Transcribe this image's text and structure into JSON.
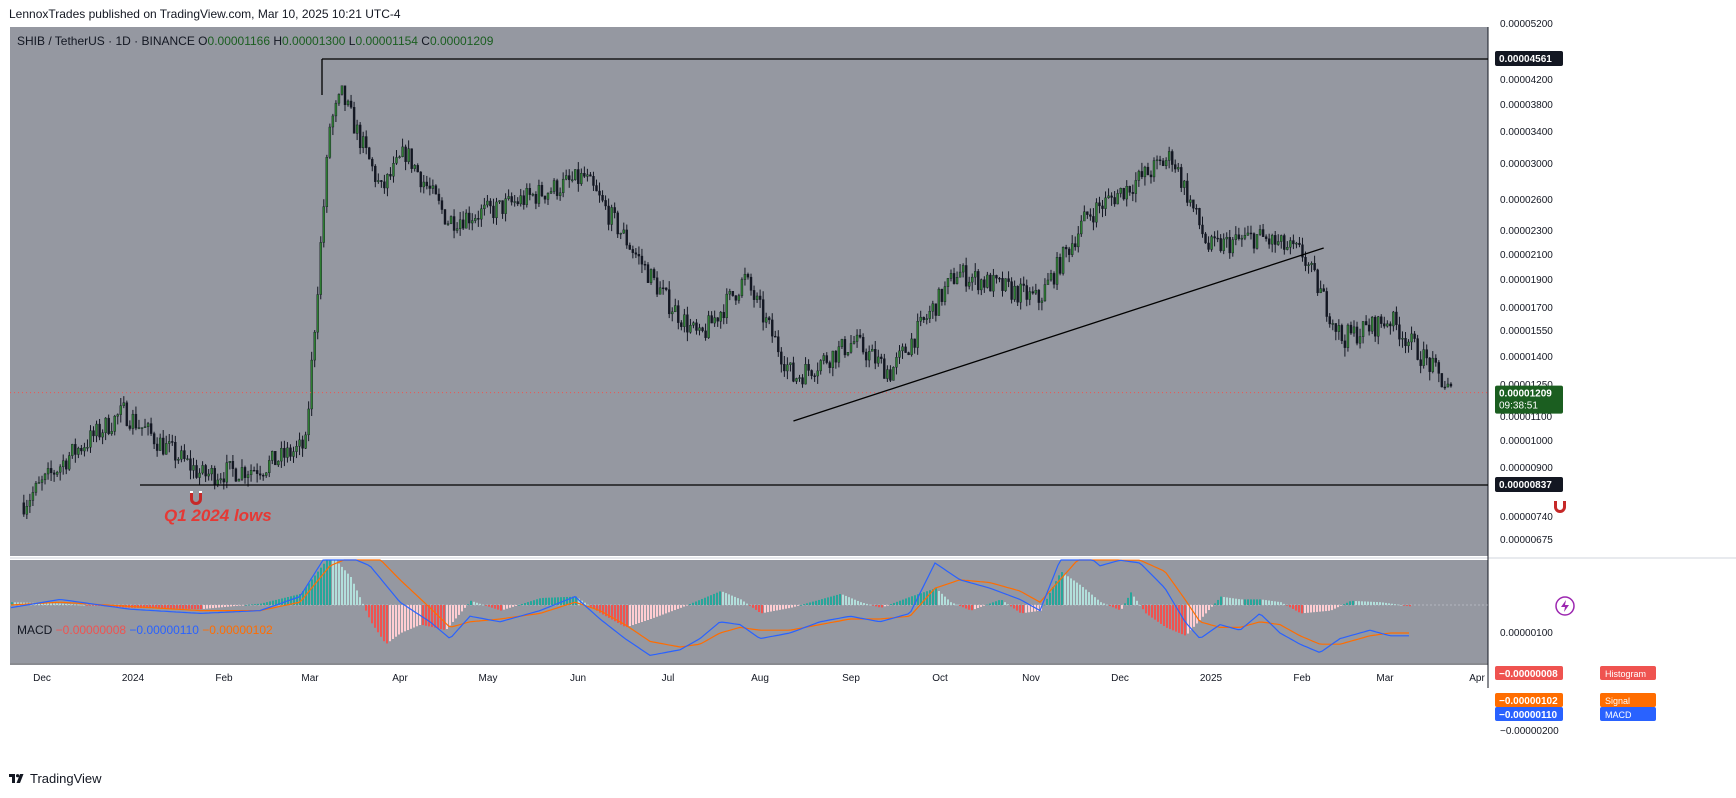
{
  "header": {
    "published": "LennoxTrades published on TradingView.com, Mar 10, 2025 10:21 UTC-4"
  },
  "footer": {
    "brand": "TradingView"
  },
  "legend": {
    "symbol": "SHIB / TetherUS · 1D · BINANCE",
    "o_label": "O",
    "o_value": "0.00001166",
    "h_label": "H",
    "h_value": "0.00001300",
    "l_label": "L",
    "l_value": "0.00001154",
    "c_label": "C",
    "c_value": "0.00001209"
  },
  "macd_legend": {
    "name": "MACD",
    "histogram": "−0.00000008",
    "macd": "−0.00000110",
    "signal": "−0.00000102"
  },
  "annotations": {
    "zone_label": "Q1 2024 lows"
  },
  "price_tags": {
    "top_level": "0.00004561",
    "bottom_level": "0.00000837",
    "current_price": "0.00001209",
    "countdown": "09:38:51"
  },
  "macd_tags": {
    "histogram_label": "Histogram",
    "histogram_value": "−0.00000008",
    "signal_label": "Signal",
    "signal_value": "−0.00000102",
    "macd_label": "MACD",
    "macd_value": "−0.00000110"
  },
  "colors": {
    "pane_bg": "#9598a1",
    "candle_up": "#2e7d32",
    "candle_down": "#131722",
    "current_price_tag": "#1b5e20",
    "macd_line": "#2962ff",
    "signal_line": "#ff6d00",
    "hist_pos_strong": "#26a69a",
    "hist_pos_weak": "#b2dfdb",
    "hist_neg_strong": "#ef5350",
    "hist_neg_weak": "#ffcdd2",
    "annotation": "#e53935"
  },
  "chart_data": {
    "type": "candlestick",
    "symbol": "SHIB / TetherUS",
    "interval": "1D",
    "exchange": "BINANCE",
    "scale": "log",
    "price_axis_ticks": [
      "0.00005200",
      "0.00004561",
      "0.00004200",
      "0.00003800",
      "0.00003400",
      "0.00003000",
      "0.00002600",
      "0.00002300",
      "0.00002100",
      "0.00001900",
      "0.00001700",
      "0.00001550",
      "0.00001400",
      "0.00001250",
      "0.00001209",
      "0.00001100",
      "0.00001000",
      "0.00000900",
      "0.00000837",
      "0.00000740",
      "0.00000675"
    ],
    "time_axis_ticks": [
      "Dec",
      "2024",
      "Feb",
      "Mar",
      "Apr",
      "May",
      "Jun",
      "Jul",
      "Aug",
      "Sep",
      "Oct",
      "Nov",
      "Dec",
      "2025",
      "Feb",
      "Mar",
      "Apr"
    ],
    "price_path": [
      {
        "date": "2023-11-25",
        "close": 7.8e-06
      },
      {
        "date": "2023-12-10",
        "close": 9.4e-06
      },
      {
        "date": "2023-12-28",
        "close": 1.12e-05
      },
      {
        "date": "2024-01-10",
        "close": 9.8e-06
      },
      {
        "date": "2024-01-23",
        "close": 8.7e-06
      },
      {
        "date": "2024-02-12",
        "close": 9e-06
      },
      {
        "date": "2024-02-26",
        "close": 9.8e-06
      },
      {
        "date": "2024-03-05",
        "close": 3.5e-05
      },
      {
        "date": "2024-03-09",
        "close": 3.95e-05
      },
      {
        "date": "2024-03-22",
        "close": 2.7e-05
      },
      {
        "date": "2024-03-30",
        "close": 3.15e-05
      },
      {
        "date": "2024-04-13",
        "close": 2.4e-05
      },
      {
        "date": "2024-04-28",
        "close": 2.5e-05
      },
      {
        "date": "2024-05-28",
        "close": 2.85e-05
      },
      {
        "date": "2024-06-24",
        "close": 1.75e-05
      },
      {
        "date": "2024-07-05",
        "close": 1.5e-05
      },
      {
        "date": "2024-07-20",
        "close": 1.9e-05
      },
      {
        "date": "2024-08-05",
        "close": 1.28e-05
      },
      {
        "date": "2024-08-25",
        "close": 1.48e-05
      },
      {
        "date": "2024-09-06",
        "close": 1.31e-05
      },
      {
        "date": "2024-09-28",
        "close": 1.95e-05
      },
      {
        "date": "2024-10-25",
        "close": 1.75e-05
      },
      {
        "date": "2024-11-10",
        "close": 2.45e-05
      },
      {
        "date": "2024-12-08",
        "close": 3.1e-05
      },
      {
        "date": "2024-12-20",
        "close": 2.15e-05
      },
      {
        "date": "2025-01-05",
        "close": 2.25e-05
      },
      {
        "date": "2025-01-20",
        "close": 2.1e-05
      },
      {
        "date": "2025-02-02",
        "close": 1.5e-05
      },
      {
        "date": "2025-02-18",
        "close": 1.62e-05
      },
      {
        "date": "2025-03-03",
        "close": 1.35e-05
      },
      {
        "date": "2025-03-10",
        "close": 1.21e-05
      }
    ],
    "horizontal_levels": [
      4.561e-05,
      8.37e-06
    ],
    "trendline": [
      {
        "date": "2024-08-05",
        "price": 1.08e-05
      },
      {
        "date": "2025-01-27",
        "price": 2.15e-05
      }
    ],
    "macd": {
      "params_shown": false,
      "histogram": -8e-08,
      "macd": -1.1e-06,
      "signal": -1.02e-06,
      "axis_ticks": [
        "0.00000100",
        "−0.00000200"
      ]
    }
  }
}
